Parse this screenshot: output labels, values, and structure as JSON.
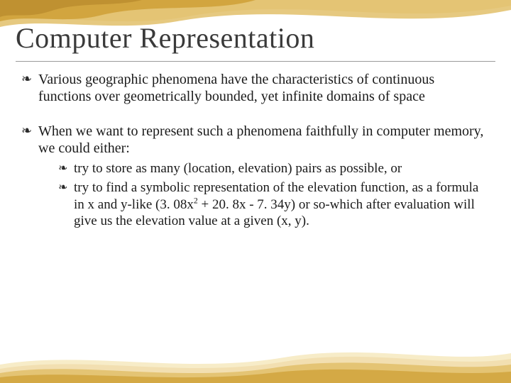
{
  "slide": {
    "title": "Computer Representation",
    "title_color": "#3a3a3a",
    "title_fontsize": 40,
    "rule_color": "#9a9a9a",
    "background_color": "#ffffff",
    "body_color": "#1a1a1a",
    "body_fontsize": 20,
    "sub_fontsize": 19,
    "bullets": [
      {
        "text": "Various geographic phenomena have the characteristics of continuous functions over geometrically bounded, yet infinite domains of space"
      },
      {
        "text": "When we want to represent such a phenomena faithfully in computer memory, we could either:",
        "sub": [
          {
            "text": "try to store as many (location, elevation) pairs as possible, or"
          },
          {
            "text_html": "try to find a symbolic representation  of the elevation function, as a formula in x and y-like (3. 08x<sup>2</sup> + 20. 8x - 7. 34y) or so-which after evaluation will give us the elevation value at a given (x, y)."
          }
        ]
      }
    ]
  },
  "decor": {
    "ribbon_colors": {
      "gold_dark": "#cfa23a",
      "gold_mid": "#e2c06a",
      "gold_light": "#f1deae",
      "cream": "#f7ecc8",
      "shadow": "#b88b2e"
    }
  }
}
